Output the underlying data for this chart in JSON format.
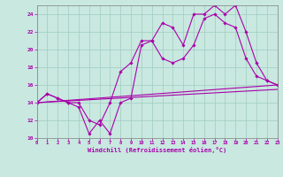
{
  "xlabel": "Windchill (Refroidissement éolien,°C)",
  "xlim": [
    0,
    23
  ],
  "ylim": [
    10,
    25
  ],
  "yticks": [
    10,
    12,
    14,
    16,
    18,
    20,
    22,
    24
  ],
  "xticks": [
    0,
    1,
    2,
    3,
    4,
    5,
    6,
    7,
    8,
    9,
    10,
    11,
    12,
    13,
    14,
    15,
    16,
    17,
    18,
    19,
    20,
    21,
    22,
    23
  ],
  "bg_color": "#c8e8e0",
  "line_color": "#aa00aa",
  "grid_color": "#a0ccc0",
  "line1_x": [
    0,
    1,
    2,
    3,
    4,
    5,
    6,
    7,
    8,
    9,
    10,
    11,
    12,
    13,
    14,
    15,
    16,
    17,
    18,
    19,
    20,
    21,
    22,
    23
  ],
  "line1_y": [
    14,
    15,
    14.5,
    14,
    13.5,
    10.5,
    12,
    10.5,
    14,
    14.5,
    20.5,
    21,
    23,
    22.5,
    20.5,
    24,
    24,
    25,
    24,
    25,
    22,
    18.5,
    16.5,
    16
  ],
  "line2_x": [
    0,
    1,
    2,
    3,
    4,
    5,
    6,
    7,
    8,
    9,
    10,
    11,
    12,
    13,
    14,
    15,
    16,
    17,
    18,
    19,
    20,
    21,
    22,
    23
  ],
  "line2_y": [
    14,
    15,
    14.5,
    14,
    14,
    12,
    11.5,
    14,
    17.5,
    18.5,
    21,
    21,
    19,
    18.5,
    19,
    20.5,
    23.5,
    24,
    23,
    22.5,
    19,
    17,
    16.5,
    16
  ],
  "line3_x": [
    0,
    23
  ],
  "line3_y": [
    14,
    15.5
  ],
  "line4_x": [
    0,
    23
  ],
  "line4_y": [
    14,
    16
  ]
}
